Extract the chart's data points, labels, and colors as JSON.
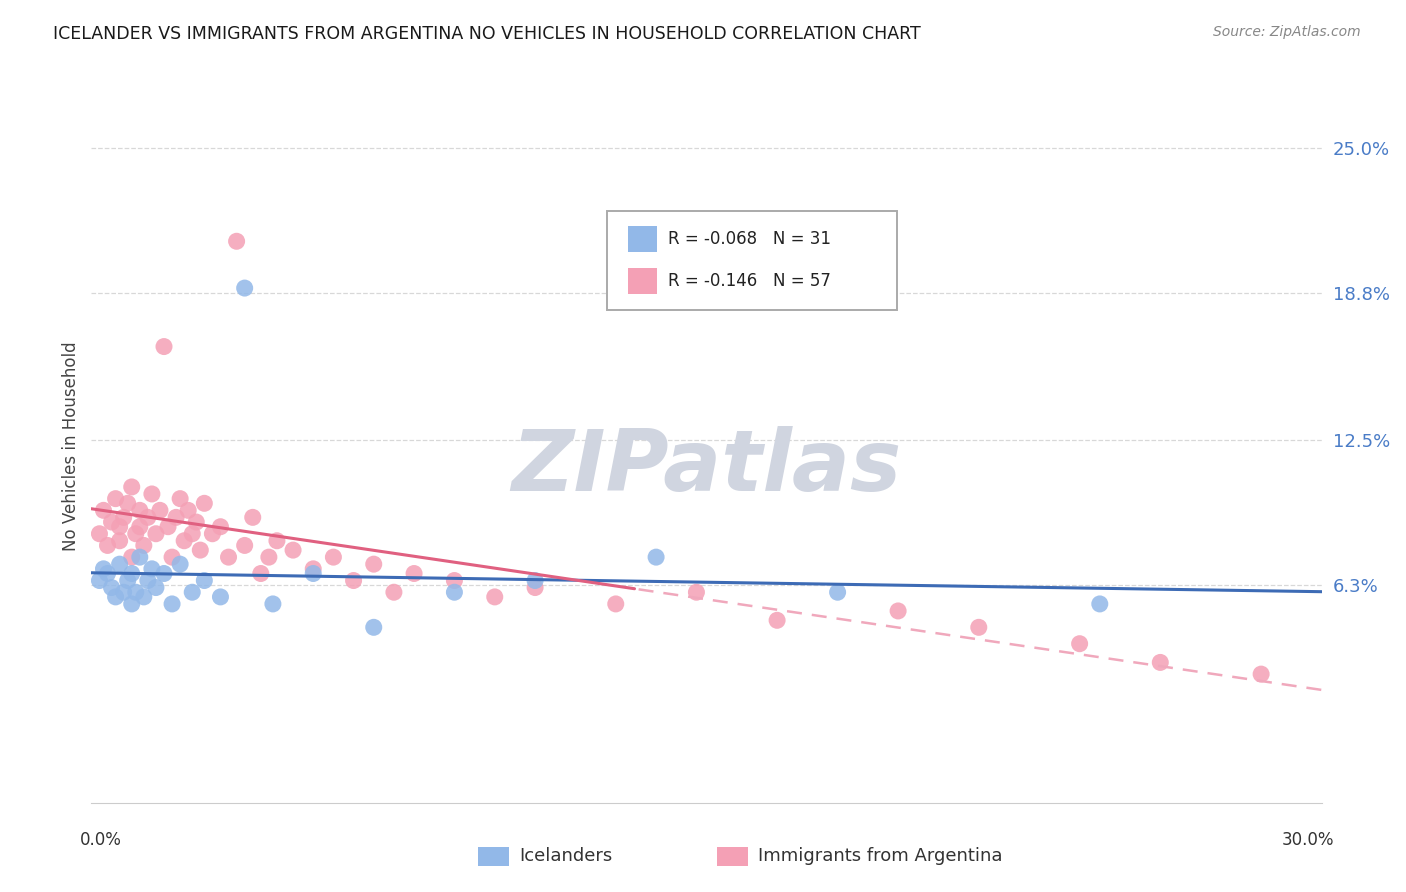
{
  "title": "ICELANDER VS IMMIGRANTS FROM ARGENTINA NO VEHICLES IN HOUSEHOLD CORRELATION CHART",
  "source": "Source: ZipAtlas.com",
  "ylabel": "No Vehicles in Household",
  "ytick_vals": [
    0.063,
    0.125,
    0.188,
    0.25
  ],
  "ytick_labels": [
    "6.3%",
    "12.5%",
    "18.8%",
    "25.0%"
  ],
  "xlim": [
    0.0,
    0.305
  ],
  "ylim": [
    -0.03,
    0.275
  ],
  "icelanders_R": -0.068,
  "icelanders_N": 31,
  "argentina_R": -0.146,
  "argentina_N": 57,
  "blue_color": "#92b8e8",
  "pink_color": "#f4a0b5",
  "blue_line_color": "#3d6bb5",
  "pink_line_color": "#e06080",
  "pink_dash_color": "#f0a8bc",
  "background_color": "#ffffff",
  "grid_color": "#d8d8d8",
  "watermark_color": "#d0d5e0",
  "title_color": "#1a1a1a",
  "source_color": "#888888",
  "axis_label_color": "#444444",
  "tick_color": "#4a7cc7",
  "legend_box_color": "#aaaaaa",
  "icelanders_x": [
    0.002,
    0.003,
    0.004,
    0.005,
    0.006,
    0.007,
    0.008,
    0.009,
    0.01,
    0.01,
    0.011,
    0.012,
    0.013,
    0.014,
    0.015,
    0.016,
    0.018,
    0.02,
    0.022,
    0.025,
    0.028,
    0.032,
    0.038,
    0.045,
    0.055,
    0.07,
    0.09,
    0.11,
    0.14,
    0.185,
    0.25
  ],
  "icelanders_y": [
    0.065,
    0.07,
    0.068,
    0.062,
    0.058,
    0.072,
    0.06,
    0.065,
    0.068,
    0.055,
    0.06,
    0.075,
    0.058,
    0.065,
    0.07,
    0.062,
    0.068,
    0.055,
    0.072,
    0.06,
    0.065,
    0.058,
    0.19,
    0.055,
    0.068,
    0.045,
    0.06,
    0.065,
    0.075,
    0.06,
    0.055
  ],
  "argentina_x": [
    0.002,
    0.003,
    0.004,
    0.005,
    0.006,
    0.007,
    0.007,
    0.008,
    0.009,
    0.01,
    0.01,
    0.011,
    0.012,
    0.012,
    0.013,
    0.014,
    0.015,
    0.016,
    0.017,
    0.018,
    0.019,
    0.02,
    0.021,
    0.022,
    0.023,
    0.024,
    0.025,
    0.026,
    0.027,
    0.028,
    0.03,
    0.032,
    0.034,
    0.036,
    0.038,
    0.04,
    0.042,
    0.044,
    0.046,
    0.05,
    0.055,
    0.06,
    0.065,
    0.07,
    0.075,
    0.08,
    0.09,
    0.1,
    0.11,
    0.13,
    0.15,
    0.17,
    0.2,
    0.22,
    0.245,
    0.265,
    0.29
  ],
  "argentina_y": [
    0.085,
    0.095,
    0.08,
    0.09,
    0.1,
    0.088,
    0.082,
    0.092,
    0.098,
    0.075,
    0.105,
    0.085,
    0.095,
    0.088,
    0.08,
    0.092,
    0.102,
    0.085,
    0.095,
    0.165,
    0.088,
    0.075,
    0.092,
    0.1,
    0.082,
    0.095,
    0.085,
    0.09,
    0.078,
    0.098,
    0.085,
    0.088,
    0.075,
    0.21,
    0.08,
    0.092,
    0.068,
    0.075,
    0.082,
    0.078,
    0.07,
    0.075,
    0.065,
    0.072,
    0.06,
    0.068,
    0.065,
    0.058,
    0.062,
    0.055,
    0.06,
    0.048,
    0.052,
    0.045,
    0.038,
    0.03,
    0.025
  ]
}
